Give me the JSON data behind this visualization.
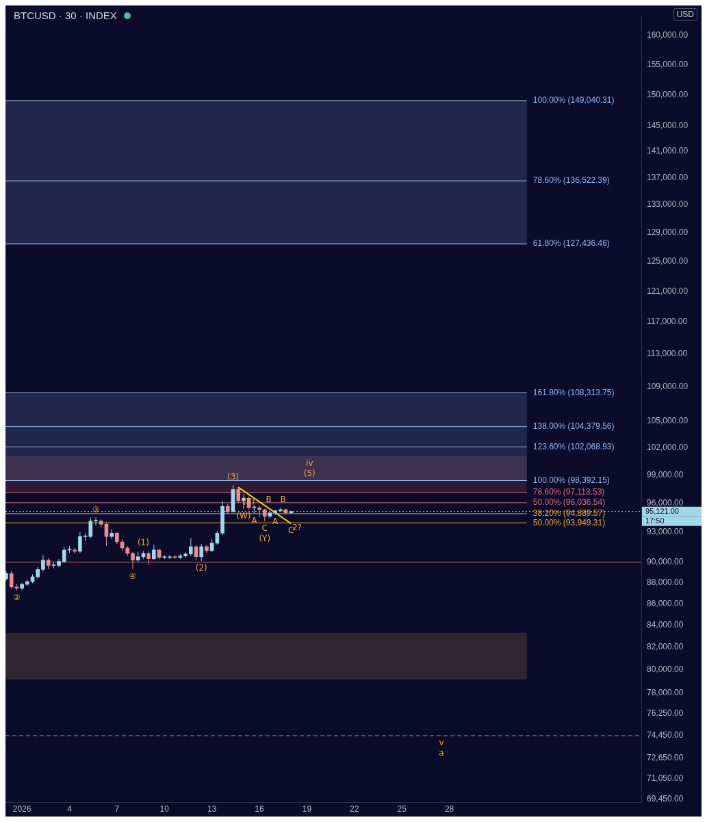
{
  "chart_data": {
    "type": "candlestick",
    "title": "BTCUSD · 30 · INDEX",
    "ylabel": "USD",
    "log": "y",
    "legend": false,
    "xlim": [
      "2025-12-30T23:00",
      "2026-02-09T03:00"
    ],
    "xticks": [
      {
        "value": "2026-01-01",
        "label": "2026"
      },
      {
        "value": "2026-01-04",
        "label": "4"
      },
      {
        "value": "2026-01-07",
        "label": "7"
      },
      {
        "value": "2026-01-10",
        "label": "10"
      },
      {
        "value": "2026-01-13",
        "label": "13"
      },
      {
        "value": "2026-01-16",
        "label": "16"
      },
      {
        "value": "2026-01-19",
        "label": "19"
      },
      {
        "value": "2026-01-22",
        "label": "22"
      },
      {
        "value": "2026-01-25",
        "label": "25"
      },
      {
        "value": "2026-01-28",
        "label": "28"
      }
    ],
    "ylim": [
      69200,
      163500
    ],
    "yticks": [
      {
        "value": 69450,
        "label": "69,450.00"
      },
      {
        "value": 71050,
        "label": "71,050.00"
      },
      {
        "value": 72650,
        "label": "72,650.00"
      },
      {
        "value": 74450,
        "label": "74,450.00"
      },
      {
        "value": 76250,
        "label": "76,250.00"
      },
      {
        "value": 78000,
        "label": "78,000.00"
      },
      {
        "value": 80000,
        "label": "80,000.00"
      },
      {
        "value": 82000,
        "label": "82,000.00"
      },
      {
        "value": 84000,
        "label": "84,000.00"
      },
      {
        "value": 86000,
        "label": "86,000.00"
      },
      {
        "value": 88000,
        "label": "88,000.00"
      },
      {
        "value": 90000,
        "label": "90,000.00"
      },
      {
        "value": 93000,
        "label": "93,000.00"
      },
      {
        "value": 96000,
        "label": "96,000.00"
      },
      {
        "value": 99000,
        "label": "99,000.00"
      },
      {
        "value": 102000,
        "label": "102,000.00"
      },
      {
        "value": 105000,
        "label": "105,000.00"
      },
      {
        "value": 109000,
        "label": "109,000.00"
      },
      {
        "value": 113000,
        "label": "113,000.00"
      },
      {
        "value": 117000,
        "label": "117,000.00"
      },
      {
        "value": 121000,
        "label": "121,000.00"
      },
      {
        "value": 125000,
        "label": "125,000.00"
      },
      {
        "value": 129000,
        "label": "129,000.00"
      },
      {
        "value": 133000,
        "label": "133,000.00"
      },
      {
        "value": 137000,
        "label": "137,000.00"
      },
      {
        "value": 141000,
        "label": "141,000.00"
      },
      {
        "value": 145000,
        "label": "145,000.00"
      },
      {
        "value": 150000,
        "label": "150,000.00"
      },
      {
        "value": 155000,
        "label": "155,000.00"
      },
      {
        "value": 160000,
        "label": "160,000.00"
      }
    ],
    "series": [
      {
        "x": [
          "2025-12-31T00:00",
          "2025-12-31T08:00",
          "2025-12-31T16:00",
          "2026-01-01T00:00",
          "2026-01-01T08:00",
          "2026-01-01T16:00",
          "2026-01-02T00:00",
          "2026-01-02T08:00",
          "2026-01-02T16:00",
          "2026-01-03T00:00",
          "2026-01-03T08:00",
          "2026-01-03T16:00",
          "2026-01-04T00:00",
          "2026-01-04T08:00",
          "2026-01-04T16:00",
          "2026-01-05T00:00",
          "2026-01-05T08:00",
          "2026-01-05T16:00",
          "2026-01-06T00:00",
          "2026-01-06T08:00",
          "2026-01-06T16:00",
          "2026-01-07T00:00",
          "2026-01-07T08:00",
          "2026-01-07T16:00",
          "2026-01-08T00:00",
          "2026-01-08T08:00",
          "2026-01-08T16:00",
          "2026-01-09T00:00",
          "2026-01-09T08:00",
          "2026-01-09T16:00",
          "2026-01-10T00:00",
          "2026-01-10T08:00",
          "2026-01-10T16:00",
          "2026-01-11T00:00",
          "2026-01-11T08:00",
          "2026-01-11T16:00",
          "2026-01-12T00:00",
          "2026-01-12T08:00",
          "2026-01-12T16:00",
          "2026-01-13T00:00",
          "2026-01-13T08:00",
          "2026-01-13T16:00",
          "2026-01-14T00:00",
          "2026-01-14T08:00",
          "2026-01-14T16:00",
          "2026-01-15T00:00",
          "2026-01-15T08:00",
          "2026-01-15T16:00",
          "2026-01-16T00:00",
          "2026-01-16T08:00",
          "2026-01-16T16:00",
          "2026-01-17T00:00",
          "2026-01-17T08:00",
          "2026-01-17T16:00",
          "2026-01-18T00:00"
        ],
        "ohlc": [
          [
            88360,
            89100,
            88200,
            88880
          ],
          [
            88880,
            89150,
            87400,
            87590
          ],
          [
            87590,
            87900,
            87250,
            87460
          ],
          [
            87460,
            88000,
            87300,
            87840
          ],
          [
            87840,
            88300,
            87650,
            88100
          ],
          [
            88100,
            88800,
            87950,
            88560
          ],
          [
            88560,
            89500,
            88400,
            89280
          ],
          [
            89280,
            90700,
            89100,
            90200
          ],
          [
            90200,
            90400,
            89300,
            89670
          ],
          [
            89670,
            90000,
            89400,
            89670
          ],
          [
            89670,
            90300,
            89500,
            90070
          ],
          [
            90070,
            91500,
            89900,
            91200
          ],
          [
            91200,
            91600,
            90900,
            91200
          ],
          [
            91200,
            91400,
            90800,
            91070
          ],
          [
            91070,
            93000,
            90900,
            92550
          ],
          [
            92550,
            92900,
            92100,
            92550
          ],
          [
            92550,
            94500,
            92400,
            94130
          ],
          [
            94130,
            94500,
            93700,
            94130
          ],
          [
            94130,
            94300,
            93500,
            93800
          ],
          [
            93800,
            94000,
            91600,
            92550
          ],
          [
            92550,
            93300,
            92300,
            92890
          ],
          [
            92890,
            93000,
            91800,
            92010
          ],
          [
            92010,
            92300,
            91100,
            91400
          ],
          [
            91400,
            91600,
            90600,
            90860
          ],
          [
            90860,
            91000,
            89340,
            90200
          ],
          [
            90200,
            91000,
            90000,
            90530
          ],
          [
            90530,
            91100,
            90300,
            90860
          ],
          [
            90860,
            91100,
            89700,
            90330
          ],
          [
            90330,
            91700,
            90200,
            91200
          ],
          [
            91200,
            91300,
            90300,
            90460
          ],
          [
            90460,
            90700,
            90300,
            90460
          ],
          [
            90460,
            90700,
            90300,
            90530
          ],
          [
            90530,
            90700,
            90300,
            90460
          ],
          [
            90460,
            90800,
            90300,
            90600
          ],
          [
            90600,
            91000,
            90400,
            90800
          ],
          [
            90800,
            92400,
            90600,
            91530
          ],
          [
            91530,
            91700,
            90200,
            90530
          ],
          [
            90530,
            91800,
            90100,
            91530
          ],
          [
            91530,
            91700,
            90900,
            91130
          ],
          [
            91130,
            92300,
            91000,
            91880
          ],
          [
            91880,
            93100,
            91700,
            92890
          ],
          [
            92890,
            96200,
            92700,
            95660
          ],
          [
            95660,
            95900,
            94900,
            95110
          ],
          [
            95110,
            97900,
            95000,
            97440
          ],
          [
            97440,
            97700,
            96000,
            96230
          ],
          [
            96230,
            96900,
            95400,
            96510
          ],
          [
            96510,
            96700,
            95300,
            95520
          ],
          [
            95520,
            95800,
            94900,
            95520
          ],
          [
            95520,
            95700,
            94500,
            95310
          ],
          [
            95310,
            95400,
            94100,
            94620
          ],
          [
            94620,
            95100,
            94400,
            94980
          ],
          [
            94980,
            95300,
            94800,
            95190
          ],
          [
            95190,
            95500,
            95100,
            95310
          ],
          [
            95310,
            95400,
            94800,
            94980
          ],
          [
            94980,
            95200,
            94900,
            95121
          ]
        ],
        "colors": [
          "#9fd8e6",
          "#e88b97",
          "#e88b97",
          "#9fd8e6",
          "#9fd8e6",
          "#9fd8e6",
          "#9fd8e6",
          "#9fd8e6",
          "#e88b97",
          "#9fd8e6",
          "#9fd8e6",
          "#9fd8e6",
          "#9fd8e6",
          "#e88b97",
          "#9fd8e6",
          "#9fd8e6",
          "#9fd8e6",
          "#9fd8e6",
          "#e88b97",
          "#e88b97",
          "#9fd8e6",
          "#e88b97",
          "#e88b97",
          "#e88b97",
          "#e88b97",
          "#9fd8e6",
          "#9fd8e6",
          "#e88b97",
          "#9fd8e6",
          "#e88b97",
          "#9fd8e6",
          "#9fd8e6",
          "#e88b97",
          "#9fd8e6",
          "#9fd8e6",
          "#9fd8e6",
          "#e88b97",
          "#9fd8e6",
          "#e88b97",
          "#9fd8e6",
          "#9fd8e6",
          "#9fd8e6",
          "#e88b97",
          "#9fd8e6",
          "#e88b97",
          "#9fd8e6",
          "#e88b97",
          "#9fd8e6",
          "#e88b97",
          "#e88b97",
          "#9fd8e6",
          "#9fd8e6",
          "#9fd8e6",
          "#e88b97",
          "#9fd8e6"
        ]
      },
      {
        "type": "line",
        "color": "#f5d000",
        "x": [
          "2026-01-14T16:00",
          "2026-01-18T00:00"
        ],
        "values": [
          97670,
          93870
        ]
      }
    ],
    "bands": [
      {
        "axis": "y",
        "from": 127436.46,
        "to": 149040.31,
        "color": "#8fb8f0"
      },
      {
        "axis": "y",
        "from": 98392.15,
        "to": 108313.75,
        "color": "#8fb8f0"
      },
      {
        "axis": "y",
        "from": 97113.53,
        "to": 101080,
        "color": "#e06a78"
      },
      {
        "axis": "y",
        "from": 79180,
        "to": 83310,
        "color": "#e8b84a"
      }
    ],
    "ref_lines": [
      {
        "axis": "y",
        "value": 149040.31,
        "label": "100.00% (149,040.31)",
        "color": "#8fb8f0"
      },
      {
        "axis": "y",
        "value": 136522.39,
        "label": "78.60% (136,522.39)",
        "color": "#8fb8f0"
      },
      {
        "axis": "y",
        "value": 127436.46,
        "label": "61.80% (127,436.46)",
        "color": "#8fb8f0"
      },
      {
        "axis": "y",
        "value": 108313.75,
        "label": "161.80% (108,313.75)",
        "color": "#8fb8f0"
      },
      {
        "axis": "y",
        "value": 104379.56,
        "label": "138.00% (104,379.56)",
        "color": "#8fb8f0"
      },
      {
        "axis": "y",
        "value": 102068.93,
        "label": "123.60% (102,068.93)",
        "color": "#8fb8f0"
      },
      {
        "axis": "y",
        "value": 98392.15,
        "label": "100.00% (98,392.15)",
        "color": "#8fb8f0"
      },
      {
        "axis": "y",
        "value": 97113.53,
        "label": "78.60% (97,113.53)",
        "color": "#e06a78"
      },
      {
        "axis": "y",
        "value": 96036.54,
        "label": "50.00% (96,036.54)",
        "color": "#e06a78"
      },
      {
        "axis": "y",
        "value": 94889.57,
        "label": "38.20% (94,889.57)",
        "color": "#e8a830"
      },
      {
        "axis": "y",
        "value": 93949.31,
        "label": "50.00% (93,949.31)",
        "color": "#e8a830"
      },
      {
        "axis": "y",
        "value": 90000,
        "color": "#e06a78"
      },
      {
        "axis": "y",
        "value": 74450,
        "color": "#e06a78",
        "line_style": "dashed"
      },
      {
        "axis": "y",
        "value": 95121,
        "label": "95,121.00",
        "color": "#9fd8e6",
        "line_style": "dotted"
      }
    ],
    "annotations": [
      "17:50",
      {
        "text": "②",
        "x": "2025-12-31T16:00",
        "y": 87250
      },
      {
        "text": "③",
        "x": "2026-01-05T16:00",
        "y": 94500
      },
      {
        "text": "④",
        "x": "2026-01-08T00:00",
        "y": 89340
      },
      {
        "text": "(1)",
        "x": "2026-01-08T16:00",
        "y": 91100
      },
      {
        "text": "(2)",
        "x": "2026-01-12T08:00",
        "y": 90100
      },
      {
        "text": "(3)",
        "x": "2026-01-14T08:00",
        "y": 97900
      },
      {
        "text": "(X)",
        "x": "2026-01-15T08:00",
        "y": 96900
      },
      {
        "text": "(W)",
        "x": "2026-01-15T00:00",
        "y": 95400
      },
      {
        "text": "A",
        "x": "2026-01-15T16:00",
        "y": 94900
      },
      {
        "text": "B",
        "x": "2026-01-16T14:00",
        "y": 97113.53
      },
      {
        "text": "B",
        "x": "2026-01-17T12:00",
        "y": 97113.53
      },
      {
        "text": "A",
        "x": "2026-01-17T00:00",
        "y": 94800
      },
      {
        "text": "C",
        "x": "2026-01-18T00:00",
        "y": 93870
      },
      {
        "text": "C",
        "x": "2026-01-16T08:00",
        "y": 94100
      },
      {
        "text": "(Y)",
        "x": "2026-01-16T08:00",
        "y": 94100
      },
      {
        "text": "2?",
        "x": "2026-01-18T09:00",
        "y": 94210
      },
      {
        "text": "iv",
        "x": "2026-01-19T04:00",
        "y": 101080
      },
      {
        "text": "(5)",
        "x": "2026-01-19T04:00",
        "y": 101080
      },
      {
        "text": "v",
        "x": "2026-01-27T12:00",
        "y": 74450
      },
      {
        "text": "a",
        "x": "2026-01-27T12:00",
        "y": 74450
      }
    ]
  }
}
